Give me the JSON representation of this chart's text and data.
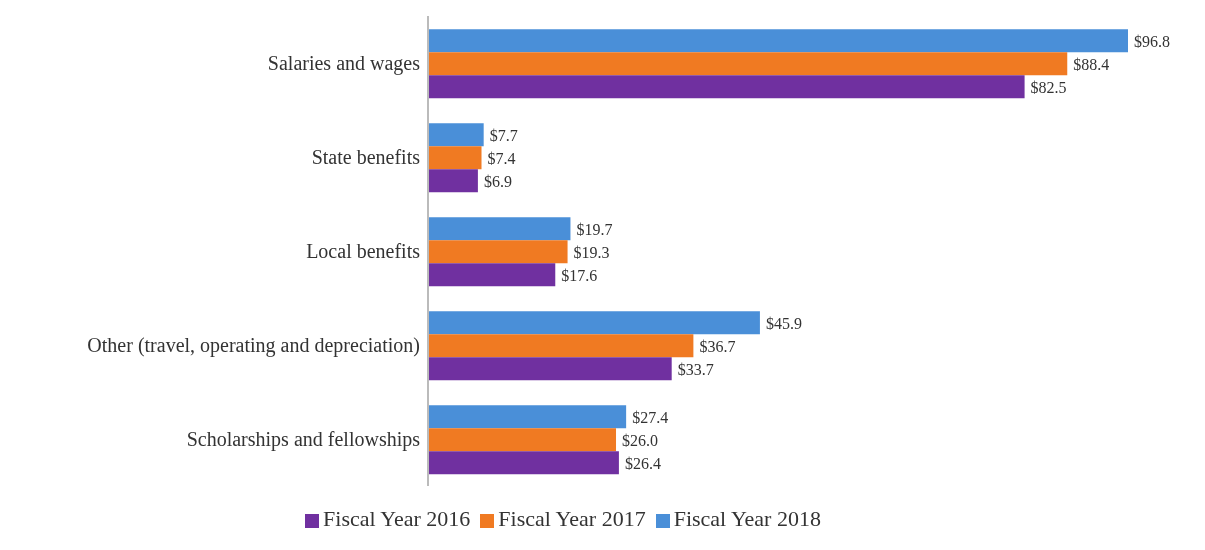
{
  "chart_data": {
    "type": "bar",
    "orientation": "horizontal",
    "categories": [
      "Salaries and wages",
      "State benefits",
      "Local benefits",
      "Other (travel, operating and depreciation)",
      "Scholarships and fellowships"
    ],
    "series": [
      {
        "name": "Fiscal Year 2018",
        "color": "#4a8fd8",
        "values": [
          96.8,
          7.7,
          19.7,
          45.9,
          27.4
        ],
        "value_labels": [
          "$96.8",
          "$7.7",
          "$19.7",
          "$45.9",
          "$27.4"
        ]
      },
      {
        "name": "Fiscal Year 2017",
        "color": "#f07a22",
        "values": [
          88.4,
          7.4,
          19.3,
          36.7,
          26.0
        ],
        "value_labels": [
          "$88.4",
          "$7.4",
          "$19.3",
          "$36.7",
          "$26.0"
        ]
      },
      {
        "name": "Fiscal Year 2016",
        "color": "#7030a0",
        "values": [
          82.5,
          6.9,
          17.6,
          33.7,
          26.4
        ],
        "value_labels": [
          "$82.5",
          "$6.9",
          "$17.6",
          "$33.7",
          "$26.4"
        ]
      }
    ],
    "legend": "bottom",
    "tick_labels": "y",
    "grid": false
  }
}
